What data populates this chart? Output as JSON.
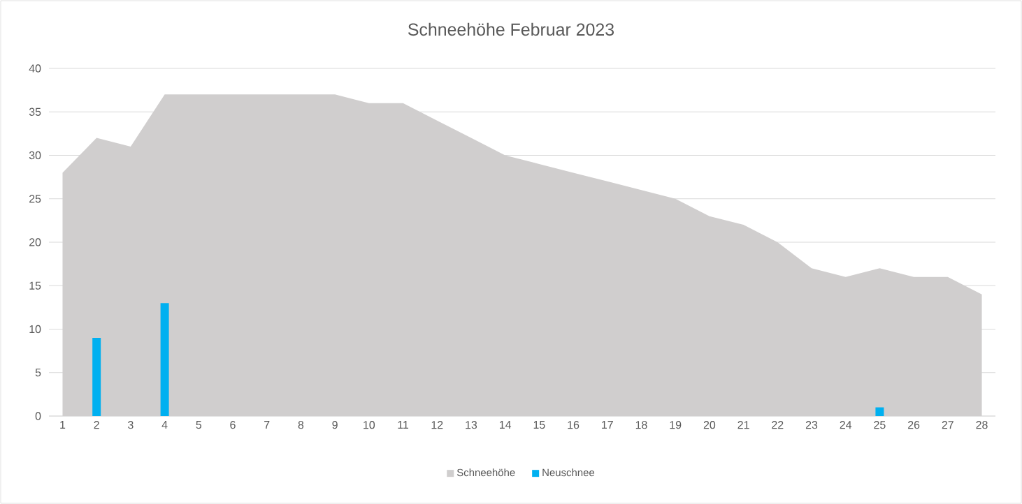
{
  "chart_data": {
    "type": "area",
    "title": "Schneehöhe Februar 2023",
    "categories": [
      "1",
      "2",
      "3",
      "4",
      "5",
      "6",
      "7",
      "8",
      "9",
      "10",
      "11",
      "12",
      "13",
      "14",
      "15",
      "16",
      "17",
      "18",
      "19",
      "20",
      "21",
      "22",
      "23",
      "24",
      "25",
      "26",
      "27",
      "28"
    ],
    "series": [
      {
        "name": "Schneehöhe",
        "color": "#d0cece",
        "values": [
          28,
          32,
          31,
          37,
          37,
          37,
          37,
          37,
          37,
          36,
          36,
          34,
          32,
          30,
          29,
          28,
          27,
          26,
          25,
          23,
          22,
          20,
          17,
          16,
          17,
          16,
          16,
          14
        ]
      },
      {
        "name": "Neuschnee",
        "type": "bar",
        "color": "#00b0f0",
        "values": [
          null,
          9,
          null,
          13,
          null,
          null,
          null,
          null,
          null,
          null,
          null,
          null,
          null,
          null,
          null,
          null,
          null,
          null,
          null,
          null,
          null,
          null,
          null,
          null,
          1,
          null,
          null,
          null
        ]
      }
    ],
    "ylim": [
      0,
      40
    ],
    "yticks": [
      0,
      5,
      10,
      15,
      20,
      25,
      30,
      35,
      40
    ],
    "grid": "y",
    "legend": "bottom"
  }
}
